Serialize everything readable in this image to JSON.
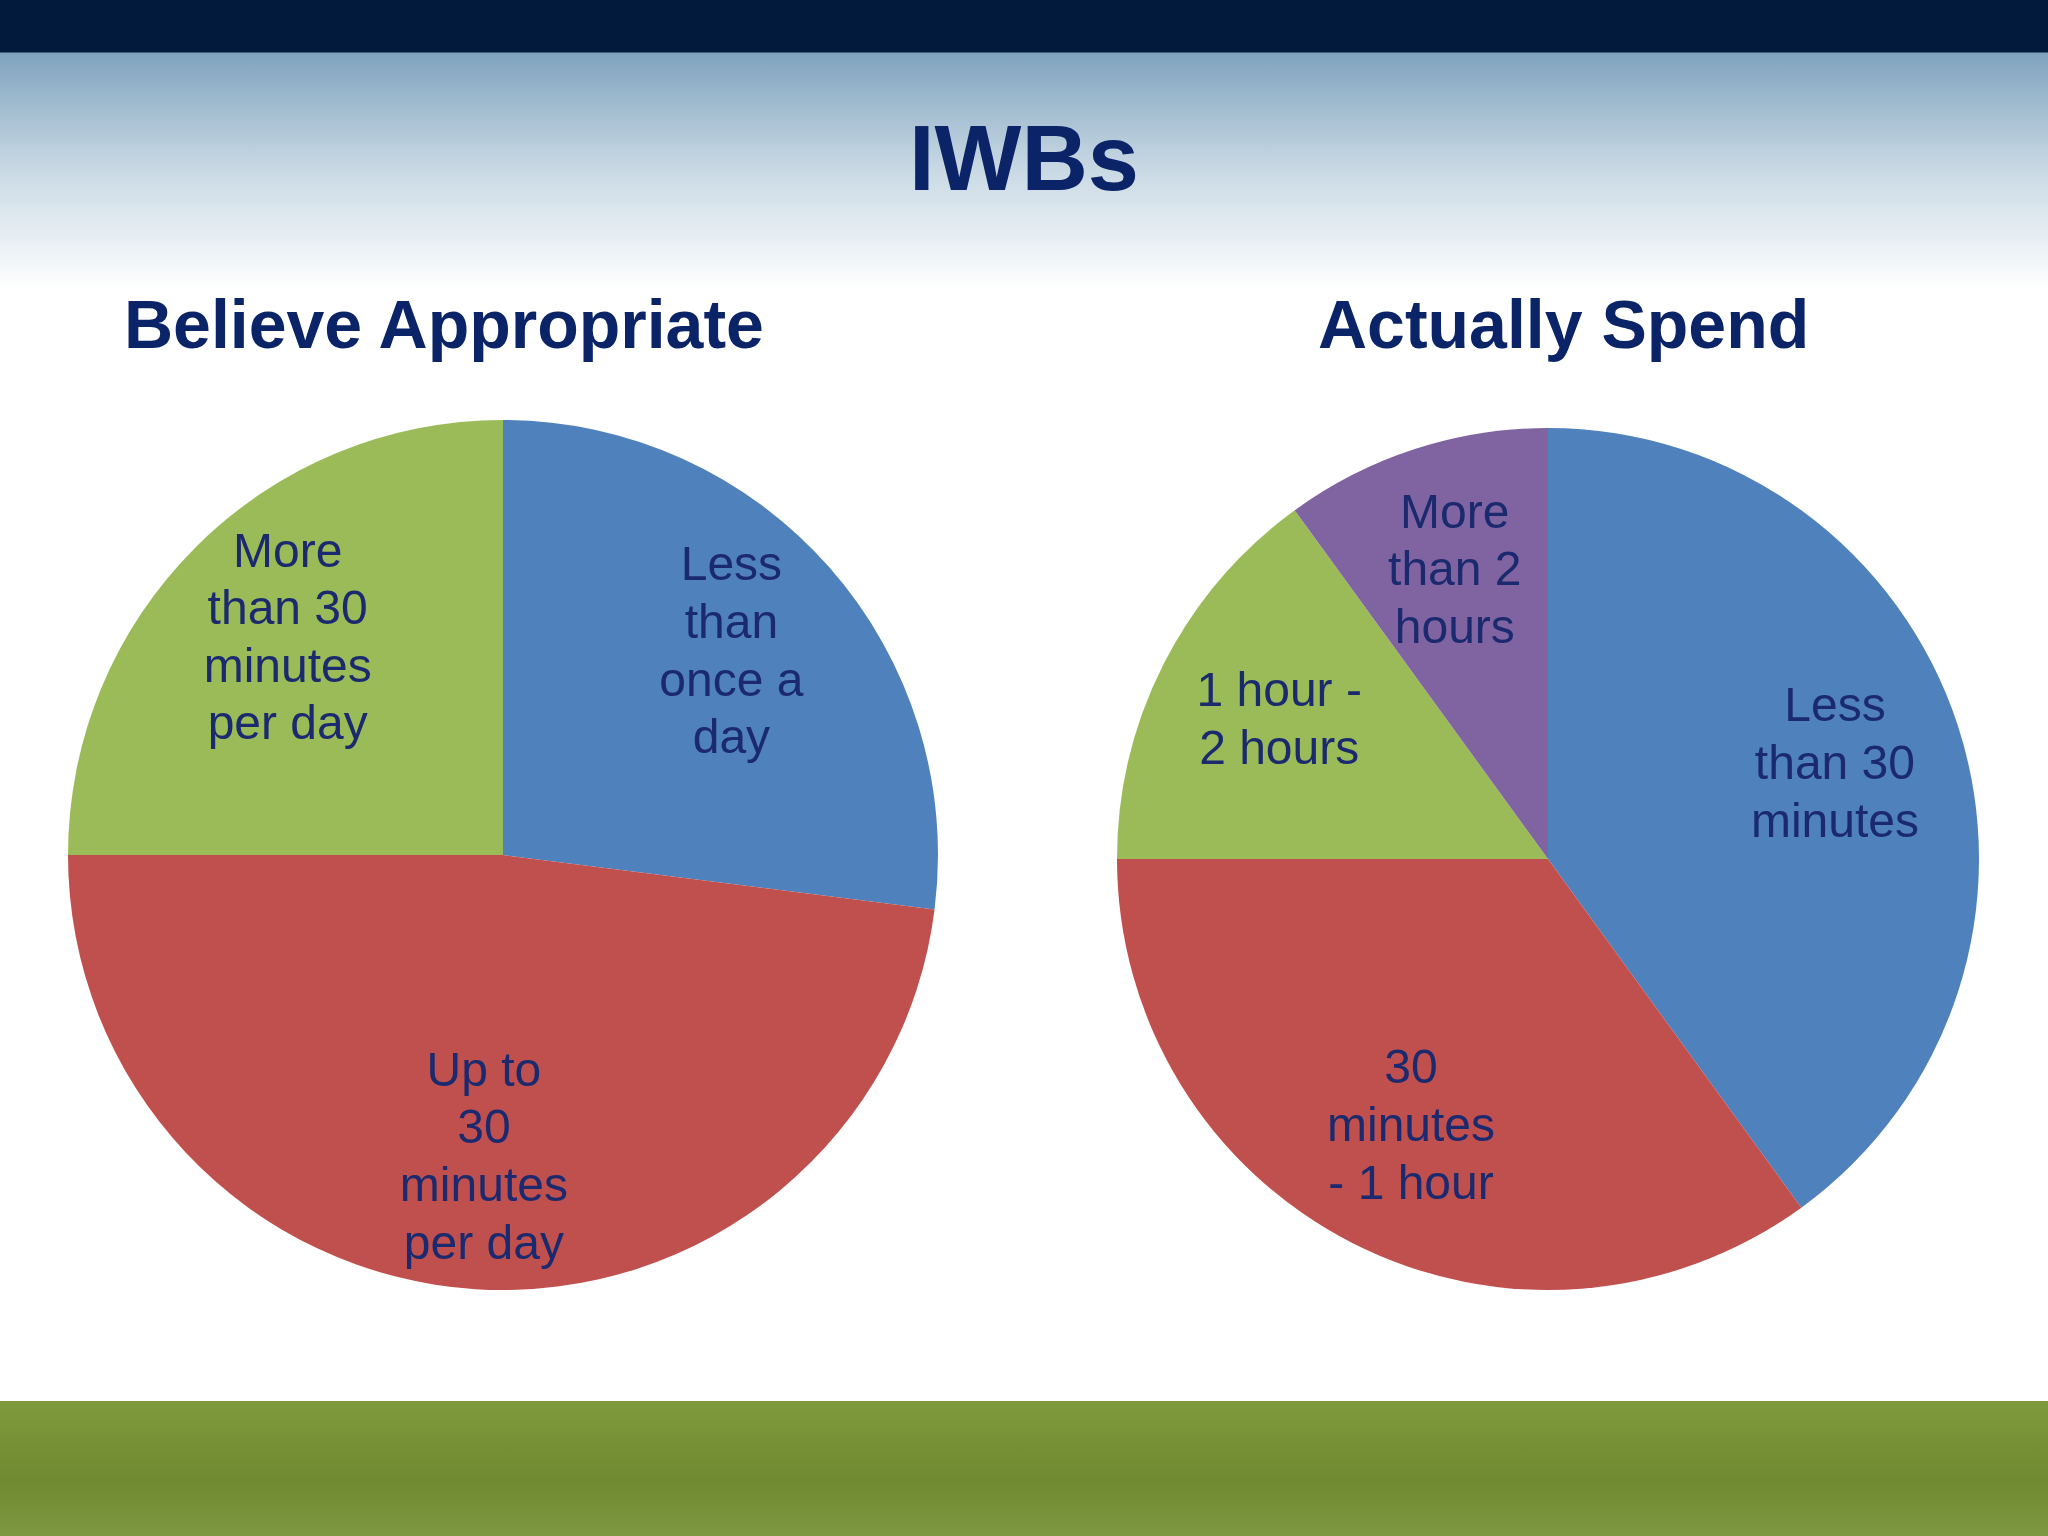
{
  "chart_data": [
    {
      "type": "other",
      "title": "IWBs"
    },
    {
      "type": "pie",
      "title": "Believe Appropriate",
      "categories": [
        "Less than once a day",
        "Up to 30 minutes per day",
        "More than 30 minutes per day"
      ],
      "values": [
        27,
        48,
        25
      ],
      "colors": [
        "#4f81bd",
        "#c0504d",
        "#9bbb59"
      ]
    },
    {
      "type": "pie",
      "title": "Actually Spend",
      "categories": [
        "Less than 30 minutes",
        "30 minutes - 1 hour",
        "1 hour - 2 hours",
        "More than 2 hours"
      ],
      "values": [
        40,
        35,
        15,
        10
      ],
      "colors": [
        "#4f81bd",
        "#c0504d",
        "#9bbb59",
        "#8064a2"
      ]
    }
  ]
}
